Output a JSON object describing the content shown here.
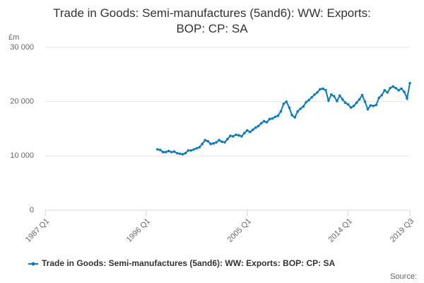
{
  "chart_data": {
    "type": "line",
    "title": "Trade in Goods: Semi-manufactures (5and6): WW: Exports: BOP: CP: SA",
    "y_label": "£m",
    "source": "Source:",
    "categories": [
      "1987 Q1",
      null,
      null,
      null,
      null,
      null,
      null,
      null,
      null,
      null,
      null,
      null,
      null,
      null,
      null,
      null,
      null,
      null,
      null,
      null,
      null,
      null,
      null,
      null,
      null,
      null,
      null,
      null,
      null,
      null,
      null,
      null,
      null,
      null,
      null,
      null,
      "1996 Q1",
      null,
      null,
      null,
      null,
      null,
      null,
      null,
      null,
      null,
      null,
      null,
      null,
      null,
      null,
      null,
      null,
      null,
      null,
      null,
      null,
      null,
      null,
      null,
      null,
      null,
      null,
      null,
      null,
      null,
      null,
      null,
      null,
      null,
      null,
      null,
      "2005 Q1",
      null,
      null,
      null,
      null,
      null,
      null,
      null,
      null,
      null,
      null,
      null,
      null,
      null,
      null,
      null,
      null,
      null,
      null,
      null,
      null,
      null,
      null,
      null,
      null,
      null,
      null,
      null,
      null,
      null,
      null,
      null,
      null,
      null,
      null,
      null,
      "2014 Q1",
      null,
      null,
      null,
      null,
      null,
      null,
      null,
      null,
      null,
      null,
      null,
      null,
      null,
      null,
      null,
      null,
      null,
      null,
      null,
      null,
      null,
      "2019 Q3"
    ],
    "series": [
      {
        "name": "Trade in Goods: Semi-manufactures (5and6): WW: Exports: BOP: CP: SA",
        "color": "#0b7bbd",
        "values": [
          null,
          null,
          null,
          null,
          null,
          null,
          null,
          null,
          null,
          null,
          null,
          null,
          null,
          null,
          null,
          null,
          null,
          null,
          null,
          null,
          null,
          null,
          null,
          null,
          null,
          null,
          null,
          null,
          null,
          null,
          null,
          null,
          null,
          null,
          null,
          null,
          null,
          null,
          null,
          null,
          11200,
          11100,
          10700,
          10700,
          10900,
          10700,
          10800,
          10500,
          10400,
          10300,
          10500,
          11000,
          11000,
          11200,
          11400,
          11600,
          12200,
          12900,
          12700,
          12200,
          12300,
          12500,
          12900,
          12600,
          12500,
          13100,
          13700,
          13600,
          13900,
          13800,
          13600,
          14200,
          14700,
          14400,
          14800,
          15200,
          15500,
          16000,
          16400,
          16200,
          16800,
          16900,
          17200,
          17400,
          18200,
          19600,
          20000,
          18900,
          17500,
          17100,
          18200,
          18700,
          19100,
          19900,
          20300,
          20800,
          21300,
          21700,
          22300,
          22400,
          22100,
          20200,
          21300,
          21000,
          20100,
          21100,
          20400,
          19800,
          19500,
          18900,
          19200,
          19800,
          20400,
          21200,
          20000,
          18600,
          19300,
          19200,
          19400,
          20700,
          21200,
          22100,
          21700,
          22500,
          22800,
          22500,
          22100,
          22400,
          21800,
          20600,
          23400
        ]
      }
    ],
    "ylim": [
      0,
      30000
    ],
    "yticks": [
      0,
      {
        "value": 10000,
        "label": "10 000"
      },
      {
        "value": 20000,
        "label": "20 000"
      },
      {
        "value": 30000,
        "label": "30 000"
      }
    ],
    "grid": true,
    "legend": "bottom"
  }
}
